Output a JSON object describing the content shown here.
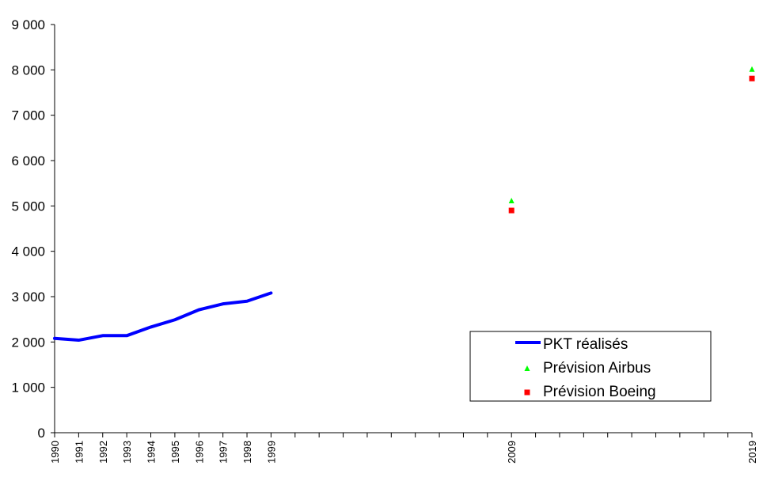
{
  "chart_data": {
    "type": "line",
    "title": "",
    "xlabel": "",
    "ylabel": "",
    "xlim": [
      1990,
      2019
    ],
    "ylim": [
      0,
      9000
    ],
    "yticks": [
      0,
      1000,
      2000,
      3000,
      4000,
      5000,
      6000,
      7000,
      8000,
      9000
    ],
    "ytick_labels": [
      "0",
      "1 000",
      "2 000",
      "3 000",
      "4 000",
      "5 000",
      "6 000",
      "7 000",
      "8 000",
      "9 000"
    ],
    "xtick_labels": [
      "1990",
      "1991",
      "1992",
      "1993",
      "1994",
      "1995",
      "1996",
      "1997",
      "1998",
      "1999",
      "2009",
      "2019"
    ],
    "grid": false,
    "legend_position": "bottom-right",
    "series": [
      {
        "name": "PKT réalisés",
        "kind": "line",
        "color": "#0000ff",
        "x": [
          1990,
          1991,
          1992,
          1993,
          1994,
          1995,
          1996,
          1997,
          1998,
          1999
        ],
        "values": [
          2080,
          2040,
          2140,
          2140,
          2330,
          2490,
          2710,
          2840,
          2900,
          3080
        ]
      },
      {
        "name": "Prévision Airbus",
        "kind": "marker",
        "marker": "triangle",
        "color": "#00ff00",
        "x": [
          2009,
          2019
        ],
        "values": [
          5110,
          8010
        ]
      },
      {
        "name": "Prévision Boeing",
        "kind": "marker",
        "marker": "square",
        "color": "#ff0000",
        "x": [
          2009,
          2019
        ],
        "values": [
          4900,
          7810
        ]
      }
    ]
  }
}
